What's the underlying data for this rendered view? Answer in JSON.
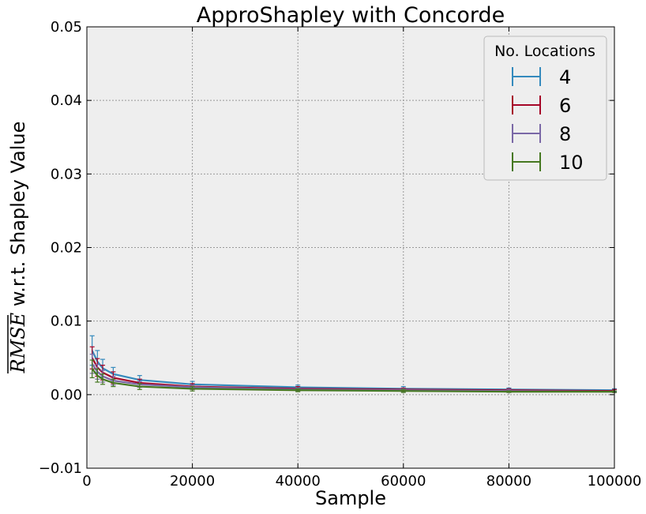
{
  "chart_data": {
    "type": "line",
    "title": "ApproShapley with Concorde",
    "xlabel": "Sample",
    "ylabel_math": "RMSE",
    "ylabel_text": " w.r.t. Shapley Value",
    "xlim": [
      0,
      100000
    ],
    "ylim": [
      -0.01,
      0.05
    ],
    "xticks": [
      0,
      20000,
      40000,
      60000,
      80000,
      100000
    ],
    "xtick_labels": [
      "0",
      "20000",
      "40000",
      "60000",
      "80000",
      "100000"
    ],
    "yticks": [
      -0.01,
      0.0,
      0.01,
      0.02,
      0.03,
      0.04,
      0.05
    ],
    "ytick_labels": [
      "−0.01",
      "0.00",
      "0.01",
      "0.02",
      "0.03",
      "0.04",
      "0.05"
    ],
    "grid": true,
    "error_bars": true,
    "legend": {
      "title": "No. Locations",
      "placement": "top-right"
    },
    "series": [
      {
        "name": "4",
        "color": "#348ABD",
        "x": [
          1000,
          2000,
          3000,
          5000,
          10000,
          20000,
          40000,
          60000,
          80000,
          100000
        ],
        "y": [
          0.006,
          0.0045,
          0.0036,
          0.0028,
          0.002,
          0.0014,
          0.001,
          0.0008,
          0.0007,
          0.0006
        ],
        "err": [
          0.002,
          0.0015,
          0.0012,
          0.0009,
          0.0006,
          0.0004,
          0.0003,
          0.0003,
          0.0002,
          0.0002
        ]
      },
      {
        "name": "6",
        "color": "#A60628",
        "x": [
          1000,
          2000,
          3000,
          5000,
          10000,
          20000,
          40000,
          60000,
          80000,
          100000
        ],
        "y": [
          0.005,
          0.0037,
          0.003,
          0.0023,
          0.0016,
          0.0011,
          0.0008,
          0.0007,
          0.0006,
          0.0005
        ],
        "err": [
          0.0015,
          0.0012,
          0.001,
          0.0008,
          0.0005,
          0.0004,
          0.0003,
          0.0002,
          0.0002,
          0.0002
        ]
      },
      {
        "name": "8",
        "color": "#7A68A6",
        "x": [
          1000,
          2000,
          3000,
          5000,
          10000,
          20000,
          40000,
          60000,
          80000,
          100000
        ],
        "y": [
          0.0042,
          0.0031,
          0.0025,
          0.0019,
          0.0014,
          0.001,
          0.0007,
          0.0006,
          0.0005,
          0.0004
        ],
        "err": [
          0.0013,
          0.001,
          0.0008,
          0.0006,
          0.0004,
          0.0003,
          0.0002,
          0.0002,
          0.0002,
          0.0001
        ]
      },
      {
        "name": "10",
        "color": "#467821",
        "x": [
          1000,
          2000,
          3000,
          5000,
          10000,
          20000,
          40000,
          60000,
          80000,
          100000
        ],
        "y": [
          0.0035,
          0.0026,
          0.0021,
          0.0016,
          0.0011,
          0.0008,
          0.0006,
          0.0005,
          0.0004,
          0.0004
        ],
        "err": [
          0.0012,
          0.0009,
          0.0007,
          0.0005,
          0.0004,
          0.0003,
          0.0002,
          0.0002,
          0.0001,
          0.0001
        ]
      }
    ]
  }
}
